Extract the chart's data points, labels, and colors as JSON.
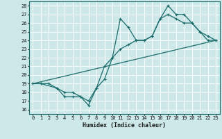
{
  "xlabel": "Humidex (Indice chaleur)",
  "xlim": [
    -0.5,
    23.5
  ],
  "ylim": [
    15.5,
    28.5
  ],
  "xticks": [
    0,
    1,
    2,
    3,
    4,
    5,
    6,
    7,
    8,
    9,
    10,
    11,
    12,
    13,
    14,
    15,
    16,
    17,
    18,
    19,
    20,
    21,
    22,
    23
  ],
  "yticks": [
    16,
    17,
    18,
    19,
    20,
    21,
    22,
    23,
    24,
    25,
    26,
    27,
    28
  ],
  "bg_color": "#cce8e8",
  "grid_color": "#ffffff",
  "line_color": "#1a6b6b",
  "line1_x": [
    0,
    1,
    2,
    3,
    4,
    5,
    6,
    7,
    8,
    9,
    10,
    11,
    12,
    13,
    14,
    15,
    16,
    17,
    18,
    19,
    20,
    21,
    22,
    23
  ],
  "line1_y": [
    19,
    19,
    19,
    18.5,
    17.5,
    17.5,
    17.5,
    16.5,
    18.5,
    19.5,
    22,
    23,
    23.5,
    24,
    24,
    24.5,
    26.5,
    27,
    26.5,
    26,
    26,
    25,
    24,
    24
  ],
  "line2_x": [
    0,
    1,
    3,
    4,
    5,
    6,
    7,
    8,
    9,
    10,
    11,
    12,
    13,
    14,
    15,
    16,
    17,
    18,
    19,
    20,
    21,
    22,
    23
  ],
  "line2_y": [
    19,
    19,
    18.5,
    18,
    18,
    17.5,
    17,
    18.5,
    21,
    22,
    26.5,
    25.5,
    24,
    24,
    24.5,
    26.5,
    28,
    27,
    27,
    26,
    25,
    24.5,
    24
  ],
  "line3_x": [
    0,
    23
  ],
  "line3_y": [
    19,
    24
  ]
}
